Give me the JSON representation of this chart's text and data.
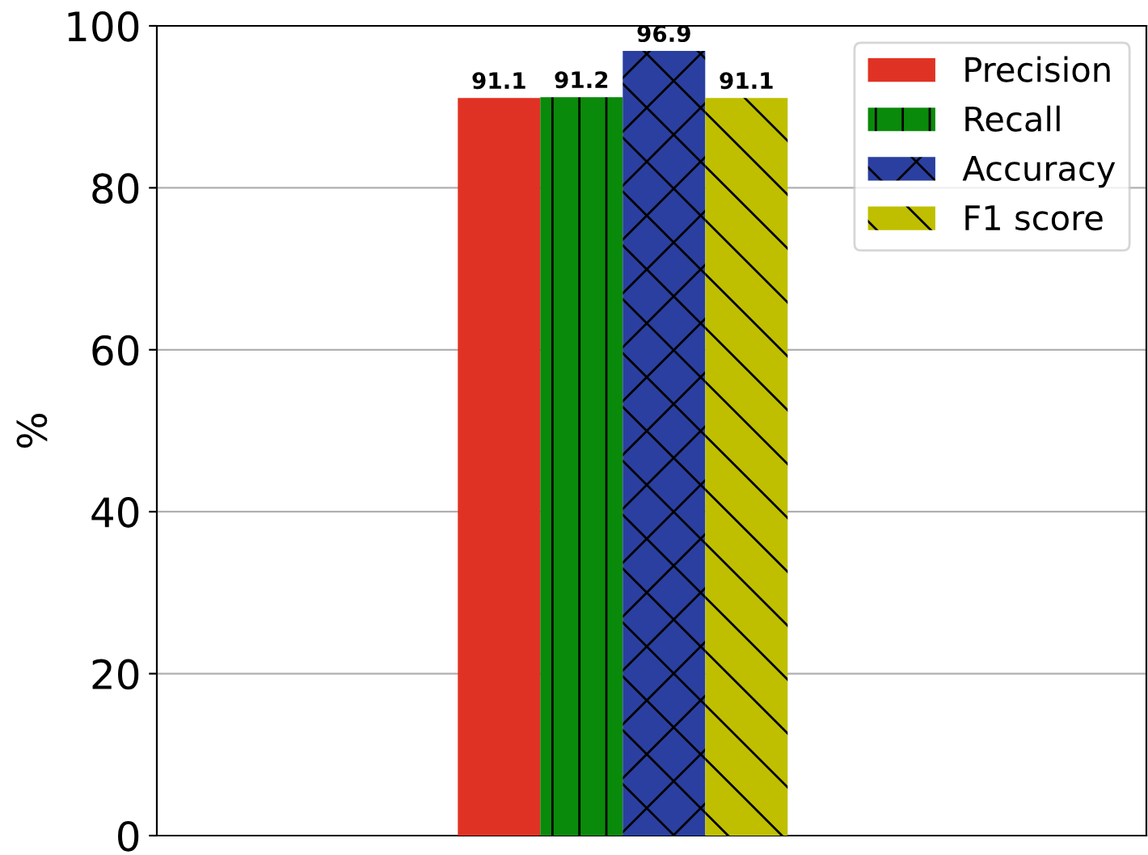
{
  "chart_data": {
    "type": "bar",
    "ylabel": "%",
    "categories": [
      null
    ],
    "series": [
      {
        "name": "Precision",
        "color": "#e03224",
        "values": [
          91.1
        ]
      },
      {
        "name": "Recall",
        "color": "#0a8a0a",
        "values": [
          91.2
        ]
      },
      {
        "name": "Accuracy",
        "color": "#2a3fa0",
        "values": [
          96.9
        ]
      },
      {
        "name": "F1 score",
        "color": "#bfbf00",
        "values": [
          91.1
        ]
      }
    ],
    "ylim": [
      0,
      100
    ],
    "yticks": [
      0,
      20,
      40,
      60,
      80,
      100
    ],
    "grid": "y",
    "legend": "top right",
    "data_labels": true,
    "tick_labels": "y"
  }
}
